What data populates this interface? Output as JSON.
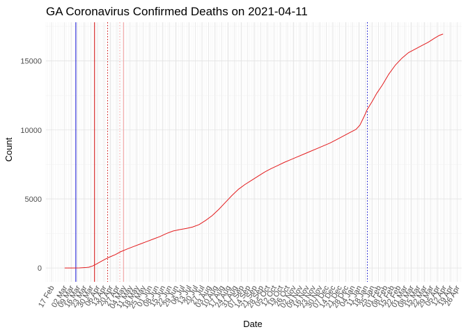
{
  "chart_data": {
    "type": "line",
    "title": "GA Coronavirus Confirmed Deaths on 2021-04-11",
    "xlabel": "Date",
    "ylabel": "Count",
    "x_range": [
      "2020-02-11",
      "2021-05-01"
    ],
    "ylim": [
      -1000,
      17800
    ],
    "y_ticks": [
      0,
      5000,
      10000,
      15000
    ],
    "grid": true,
    "x_ticks": [
      {
        "date": "2020-02-17",
        "label": "17 Feb"
      },
      {
        "date": "2020-03-02",
        "label": "02 Mar"
      },
      {
        "date": "2020-03-09",
        "label": "09 Mar"
      },
      {
        "date": "2020-03-16",
        "label": "16 Mar"
      },
      {
        "date": "2020-03-23",
        "label": "23 Mar"
      },
      {
        "date": "2020-03-30",
        "label": "30 Mar"
      },
      {
        "date": "2020-04-06",
        "label": "06 Apr"
      },
      {
        "date": "2020-04-13",
        "label": "13 Apr"
      },
      {
        "date": "2020-04-20",
        "label": "20 Apr"
      },
      {
        "date": "2020-04-27",
        "label": "27 Apr"
      },
      {
        "date": "2020-05-04",
        "label": "04 May"
      },
      {
        "date": "2020-05-11",
        "label": "11 May"
      },
      {
        "date": "2020-05-18",
        "label": "18 May"
      },
      {
        "date": "2020-05-25",
        "label": "25 May"
      },
      {
        "date": "2020-06-01",
        "label": "01 Jun"
      },
      {
        "date": "2020-06-08",
        "label": "08 Jun"
      },
      {
        "date": "2020-06-15",
        "label": "15 Jun"
      },
      {
        "date": "2020-06-22",
        "label": "22 Jun"
      },
      {
        "date": "2020-06-29",
        "label": "29 Jun"
      },
      {
        "date": "2020-07-06",
        "label": "06 Jul"
      },
      {
        "date": "2020-07-13",
        "label": "13 Jul"
      },
      {
        "date": "2020-07-20",
        "label": "20 Jul"
      },
      {
        "date": "2020-07-27",
        "label": "27 Jul"
      },
      {
        "date": "2020-08-03",
        "label": "03 Aug"
      },
      {
        "date": "2020-08-10",
        "label": "10 Aug"
      },
      {
        "date": "2020-08-17",
        "label": "17 Aug"
      },
      {
        "date": "2020-08-24",
        "label": "24 Aug"
      },
      {
        "date": "2020-08-31",
        "label": "31 Aug"
      },
      {
        "date": "2020-09-07",
        "label": "07 Sep"
      },
      {
        "date": "2020-09-14",
        "label": "14 Sep"
      },
      {
        "date": "2020-09-21",
        "label": "21 Sep"
      },
      {
        "date": "2020-09-28",
        "label": "28 Sep"
      },
      {
        "date": "2020-10-05",
        "label": "05 Oct"
      },
      {
        "date": "2020-10-12",
        "label": "12 Oct"
      },
      {
        "date": "2020-10-19",
        "label": "19 Oct"
      },
      {
        "date": "2020-10-26",
        "label": "26 Oct"
      },
      {
        "date": "2020-11-02",
        "label": "02 Nov"
      },
      {
        "date": "2020-11-09",
        "label": "09 Nov"
      },
      {
        "date": "2020-11-16",
        "label": "16 Nov"
      },
      {
        "date": "2020-11-23",
        "label": "23 Nov"
      },
      {
        "date": "2020-11-30",
        "label": "30 Nov"
      },
      {
        "date": "2020-12-07",
        "label": "07 Dec"
      },
      {
        "date": "2020-12-14",
        "label": "14 Dec"
      },
      {
        "date": "2020-12-21",
        "label": "21 Dec"
      },
      {
        "date": "2020-12-28",
        "label": "28 Dec"
      },
      {
        "date": "2021-01-04",
        "label": "04 Jan"
      },
      {
        "date": "2021-01-11",
        "label": "11 Jan"
      },
      {
        "date": "2021-01-18",
        "label": "18 Jan"
      },
      {
        "date": "2021-01-25",
        "label": "25 Jan"
      },
      {
        "date": "2021-02-01",
        "label": "01 Feb"
      },
      {
        "date": "2021-02-08",
        "label": "08 Feb"
      },
      {
        "date": "2021-02-15",
        "label": "15 Feb"
      },
      {
        "date": "2021-02-22",
        "label": "22 Feb"
      },
      {
        "date": "2021-03-01",
        "label": "01 Mar"
      },
      {
        "date": "2021-03-08",
        "label": "08 Mar"
      },
      {
        "date": "2021-03-15",
        "label": "15 Mar"
      },
      {
        "date": "2021-03-22",
        "label": "22 Mar"
      },
      {
        "date": "2021-03-29",
        "label": "29 Mar"
      },
      {
        "date": "2021-04-05",
        "label": "05 Apr"
      },
      {
        "date": "2021-04-12",
        "label": "12 Apr"
      },
      {
        "date": "2021-04-19",
        "label": "19 Apr"
      },
      {
        "date": "2021-04-26",
        "label": "26 Apr"
      }
    ],
    "series": [
      {
        "color": "#e31a1c",
        "points": [
          [
            "2020-03-02",
            0
          ],
          [
            "2020-03-10",
            0
          ],
          [
            "2020-03-18",
            10
          ],
          [
            "2020-03-24",
            30
          ],
          [
            "2020-03-28",
            60
          ],
          [
            "2020-04-01",
            150
          ],
          [
            "2020-04-05",
            290
          ],
          [
            "2020-04-10",
            480
          ],
          [
            "2020-04-15",
            660
          ],
          [
            "2020-04-20",
            820
          ],
          [
            "2020-04-25",
            960
          ],
          [
            "2020-05-01",
            1180
          ],
          [
            "2020-05-08",
            1380
          ],
          [
            "2020-05-15",
            1560
          ],
          [
            "2020-05-22",
            1740
          ],
          [
            "2020-05-29",
            1920
          ],
          [
            "2020-06-05",
            2100
          ],
          [
            "2020-06-12",
            2280
          ],
          [
            "2020-06-19",
            2500
          ],
          [
            "2020-06-26",
            2680
          ],
          [
            "2020-07-03",
            2780
          ],
          [
            "2020-07-10",
            2860
          ],
          [
            "2020-07-17",
            2970
          ],
          [
            "2020-07-24",
            3150
          ],
          [
            "2020-07-31",
            3450
          ],
          [
            "2020-08-07",
            3800
          ],
          [
            "2020-08-14",
            4250
          ],
          [
            "2020-08-21",
            4750
          ],
          [
            "2020-08-28",
            5250
          ],
          [
            "2020-09-04",
            5700
          ],
          [
            "2020-09-11",
            6050
          ],
          [
            "2020-09-18",
            6350
          ],
          [
            "2020-09-25",
            6650
          ],
          [
            "2020-10-02",
            6950
          ],
          [
            "2020-10-09",
            7200
          ],
          [
            "2020-10-16",
            7420
          ],
          [
            "2020-10-23",
            7650
          ],
          [
            "2020-10-30",
            7850
          ],
          [
            "2020-11-06",
            8050
          ],
          [
            "2020-11-13",
            8250
          ],
          [
            "2020-11-20",
            8450
          ],
          [
            "2020-11-27",
            8650
          ],
          [
            "2020-12-04",
            8850
          ],
          [
            "2020-12-11",
            9050
          ],
          [
            "2020-12-18",
            9300
          ],
          [
            "2020-12-25",
            9550
          ],
          [
            "2021-01-01",
            9800
          ],
          [
            "2021-01-08",
            10050
          ],
          [
            "2021-01-12",
            10350
          ],
          [
            "2021-01-16",
            10900
          ],
          [
            "2021-01-20",
            11500
          ],
          [
            "2021-01-25",
            12050
          ],
          [
            "2021-01-30",
            12650
          ],
          [
            "2021-02-05",
            13250
          ],
          [
            "2021-02-12",
            14050
          ],
          [
            "2021-02-19",
            14700
          ],
          [
            "2021-02-26",
            15200
          ],
          [
            "2021-03-05",
            15600
          ],
          [
            "2021-03-12",
            15850
          ],
          [
            "2021-03-19",
            16100
          ],
          [
            "2021-03-26",
            16350
          ],
          [
            "2021-04-02",
            16650
          ],
          [
            "2021-04-07",
            16850
          ],
          [
            "2021-04-11",
            16950
          ]
        ]
      }
    ],
    "reference_lines": [
      {
        "date": "2020-03-14",
        "color": "#0000cc",
        "style": "solid"
      },
      {
        "date": "2020-04-03",
        "color": "#cc0000",
        "style": "solid"
      },
      {
        "date": "2020-04-17",
        "color": "#cc0000",
        "style": "dotted"
      },
      {
        "date": "2020-04-30",
        "color": "#f4a0a0",
        "style": "dotted"
      },
      {
        "date": "2020-05-04",
        "color": "#f4a0a0",
        "style": "solid"
      },
      {
        "date": "2021-01-20",
        "color": "#0000cc",
        "style": "dotted"
      }
    ]
  }
}
